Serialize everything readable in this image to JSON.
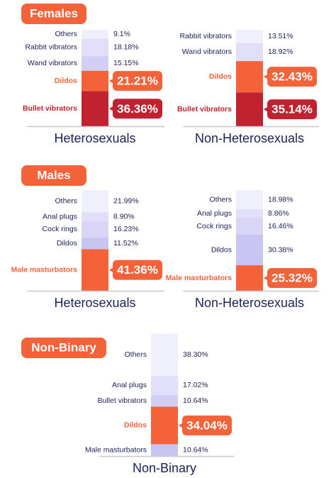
{
  "chart_data": [
    {
      "type": "stacked-bar",
      "title": "Females",
      "title_color": "#f4623a",
      "stacks": [
        {
          "label": "Heterosexuals",
          "categories": [
            "Others",
            "Rabbit vibrators",
            "Wand vibrators",
            "Dildos",
            "Bullet vibrators"
          ],
          "values": [
            9.1,
            18.18,
            15.15,
            21.21,
            36.36
          ],
          "value_labels": [
            "9.1%",
            "18.18%",
            "15.15%",
            "21.21%",
            "36.36%"
          ],
          "colors": [
            "#f0effc",
            "#e1dff9",
            "#d2cff6",
            "#f4623a",
            "#c0232f"
          ],
          "highlight": [
            false,
            false,
            false,
            true,
            true
          ]
        },
        {
          "label": "Non-Heterosexuals",
          "categories": [
            "Rabbit vibrators",
            "Wand vibrators",
            "Dildos",
            "Bullet vibrators"
          ],
          "values": [
            13.51,
            18.92,
            32.43,
            35.14
          ],
          "value_labels": [
            "13.51%",
            "18.92%",
            "32.43%",
            "35.14%"
          ],
          "colors": [
            "#f0effc",
            "#e1dff9",
            "#f4623a",
            "#c0232f"
          ],
          "highlight": [
            false,
            false,
            true,
            true
          ]
        }
      ]
    },
    {
      "type": "stacked-bar",
      "title": "Males",
      "title_color": "#f4623a",
      "stacks": [
        {
          "label": "Heterosexuals",
          "categories": [
            "Others",
            "Anal plugs",
            "Cock rings",
            "Dildos",
            "Male masturbators"
          ],
          "values": [
            21.99,
            8.9,
            16.23,
            11.52,
            41.36
          ],
          "value_labels": [
            "21.99%",
            "8.90%",
            "16.23%",
            "11.52%",
            "41.36%"
          ],
          "colors": [
            "#f0effc",
            "#e1dff9",
            "#d8d5f7",
            "#c9c5f3",
            "#f4623a"
          ],
          "highlight": [
            false,
            false,
            false,
            false,
            true
          ]
        },
        {
          "label": "Non-Heterosexuals",
          "categories": [
            "Others",
            "Anal plugs",
            "Cock rings",
            "Dildos",
            "Male masturbators"
          ],
          "values": [
            18.98,
            8.86,
            16.46,
            30.38,
            25.32
          ],
          "value_labels": [
            "18.98%",
            "8.86%",
            "16.46%",
            "30.38%",
            "25.32%"
          ],
          "colors": [
            "#f0effc",
            "#e1dff9",
            "#d8d5f7",
            "#c9c5f3",
            "#f4623a"
          ],
          "highlight": [
            false,
            false,
            false,
            false,
            true
          ]
        }
      ]
    },
    {
      "type": "stacked-bar",
      "title": "Non-Binary",
      "title_color": "#f4623a",
      "stacks": [
        {
          "label": "Non-Binary",
          "categories": [
            "Others",
            "Anal plugs",
            "Bullet vibrators",
            "Dildos",
            "Male masturbators"
          ],
          "values": [
            38.3,
            17.02,
            10.64,
            34.04,
            10.64
          ],
          "value_labels": [
            "38.30%",
            "17.02%",
            "10.64%",
            "34.04%",
            "10.64%"
          ],
          "colors": [
            "#f0effc",
            "#e1dff9",
            "#d2cff6",
            "#f4623a",
            "#c9c5f3"
          ],
          "highlight": [
            false,
            false,
            false,
            true,
            false
          ]
        }
      ]
    }
  ]
}
